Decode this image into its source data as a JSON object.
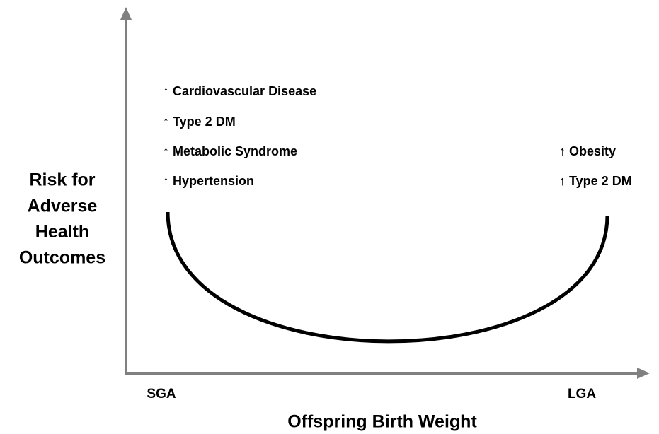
{
  "y_axis_label": [
    "Risk for",
    "Adverse",
    "Health",
    "Outcomes"
  ],
  "x_axis_label": "Offspring Birth Weight",
  "x_ends": {
    "left": "SGA",
    "right": "LGA"
  },
  "left_risks": [
    "↑ Cardiovascular Disease",
    "↑ Type 2 DM",
    "↑ Metabolic Syndrome",
    "↑ Hypertension"
  ],
  "right_risks": [
    "↑ Obesity",
    "↑ Type 2 DM"
  ]
}
